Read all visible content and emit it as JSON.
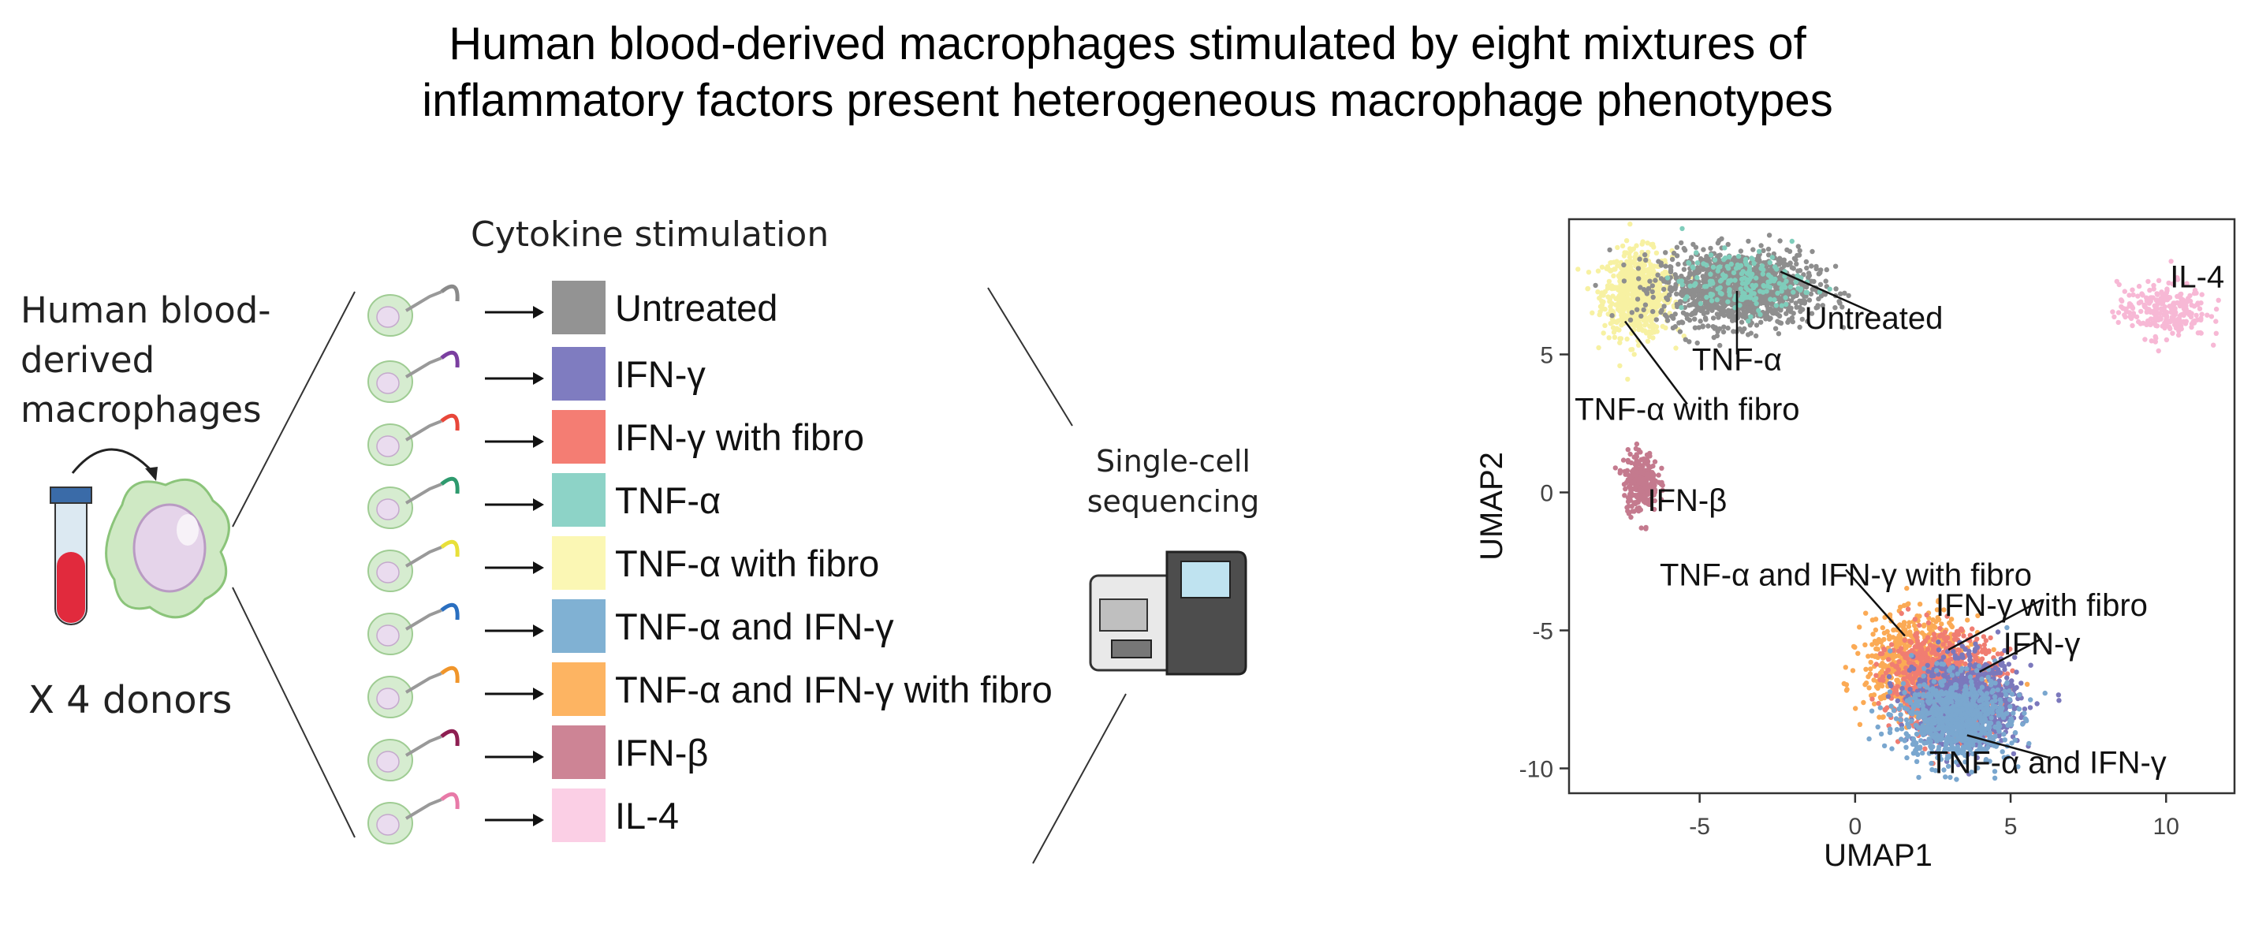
{
  "title": {
    "line1": "Human blood-derived macrophages stimulated by eight mixtures of",
    "line2": "inflammatory factors present heterogeneous macrophage phenotypes"
  },
  "left_panel": {
    "source_label": [
      "Human blood-",
      "derived",
      "macrophages"
    ],
    "donors": "X 4 donors"
  },
  "stimulation": {
    "header": "Cytokine stimulation",
    "conditions": [
      {
        "label": "Untreated",
        "color": "#939393",
        "tail": "#8a8a8a"
      },
      {
        "label": "IFN-γ",
        "color": "#7f7cc0",
        "tail": "#7b3fa0"
      },
      {
        "label": "IFN-γ with fibro",
        "color": "#f47d73",
        "tail": "#e8473a"
      },
      {
        "label": "TNF-α",
        "color": "#8dd3c7",
        "tail": "#2e9a6e"
      },
      {
        "label": "TNF-α with fibro",
        "color": "#fbf7b4",
        "tail": "#e8e03a"
      },
      {
        "label": "TNF-α and IFN-γ",
        "color": "#80b1d3",
        "tail": "#2a6fc0"
      },
      {
        "label": "TNF-α and IFN-γ with fibro",
        "color": "#fdb462",
        "tail": "#f0952a"
      },
      {
        "label": "IFN-β",
        "color": "#cd8495",
        "tail": "#8e1f52"
      },
      {
        "label": "IL-4",
        "color": "#fbcfe5",
        "tail": "#e87aa8"
      }
    ]
  },
  "sequencing": {
    "label": [
      "Single-cell",
      "sequencing"
    ]
  },
  "chart_data": {
    "type": "scatter",
    "title": "",
    "xlabel": "UMAP1",
    "ylabel": "UMAP2",
    "xlim": [
      -9.2,
      12.2
    ],
    "ylim": [
      -10.9,
      9.9
    ],
    "xticks": [
      -5,
      0,
      5,
      10
    ],
    "yticks": [
      -10,
      -5,
      0,
      5
    ],
    "grid": false,
    "legend": "none",
    "clusters": [
      {
        "label": "TNF-α with fibro",
        "color": "#f7f1a2",
        "center": [
          -7.0,
          7.2
        ],
        "spread": [
          1.0,
          1.4
        ],
        "count": 700
      },
      {
        "label": "Untreated",
        "color": "#8e8e8e",
        "center": [
          -3.8,
          7.4
        ],
        "spread": [
          2.2,
          1.2
        ],
        "count": 1300
      },
      {
        "label": "TNF-α",
        "color": "#7fcdbb",
        "center": [
          -3.6,
          7.6
        ],
        "spread": [
          1.8,
          1.0
        ],
        "count": 180
      },
      {
        "label": "IL-4",
        "color": "#f7b8d5",
        "center": [
          9.9,
          6.6
        ],
        "spread": [
          1.3,
          0.9
        ],
        "count": 260
      },
      {
        "label": "IFN-β",
        "color": "#c47a8e",
        "center": [
          -6.9,
          0.4
        ],
        "spread": [
          0.5,
          1.0
        ],
        "count": 260
      },
      {
        "label": "TNF-α and IFN-γ with fibro",
        "color": "#fbaa55",
        "center": [
          2.0,
          -6.2
        ],
        "spread": [
          1.5,
          1.5
        ],
        "count": 700
      },
      {
        "label": "IFN-γ with fibro",
        "color": "#f07d72",
        "center": [
          2.8,
          -6.9
        ],
        "spread": [
          1.6,
          1.6
        ],
        "count": 900
      },
      {
        "label": "IFN-γ",
        "color": "#7b78bc",
        "center": [
          3.6,
          -7.6
        ],
        "spread": [
          1.5,
          1.4
        ],
        "count": 900
      },
      {
        "label": "TNF-α and IFN-γ",
        "color": "#7aa7cf",
        "center": [
          3.2,
          -8.2
        ],
        "spread": [
          1.6,
          1.4
        ],
        "count": 800
      }
    ],
    "annotations": [
      {
        "text": "Untreated",
        "text_xy": [
          0.6,
          6.1
        ],
        "point_xy": [
          -2.4,
          8.0
        ]
      },
      {
        "text": "TNF-α",
        "text_xy": [
          -3.8,
          4.6
        ],
        "point_xy": [
          -3.8,
          7.3
        ]
      },
      {
        "text": "TNF-α with fibro",
        "text_xy": [
          -5.4,
          2.8
        ],
        "point_xy": [
          -7.4,
          6.2
        ]
      },
      {
        "text": "IL-4",
        "text_xy": [
          11.0,
          7.6
        ],
        "point_xy": null
      },
      {
        "text": "IFN-β",
        "text_xy": [
          -5.4,
          -0.5
        ],
        "point_xy": null
      },
      {
        "text": "TNF-α and IFN-γ with fibro",
        "text_xy": [
          -0.3,
          -3.2
        ],
        "point_xy": [
          1.6,
          -5.2
        ]
      },
      {
        "text": "IFN-γ with fibro",
        "text_xy": [
          6.0,
          -4.3
        ],
        "point_xy": [
          3.0,
          -5.7
        ]
      },
      {
        "text": "IFN-γ",
        "text_xy": [
          6.0,
          -5.7
        ],
        "point_xy": [
          4.0,
          -6.5
        ]
      },
      {
        "text": "TNF-α and IFN-γ",
        "text_xy": [
          6.2,
          -10.0
        ],
        "point_xy": [
          3.6,
          -8.8
        ]
      }
    ]
  }
}
